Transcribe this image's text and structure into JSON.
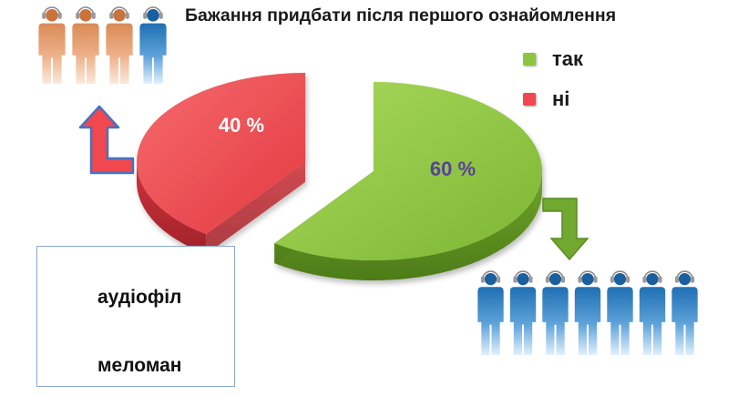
{
  "chart_data": {
    "type": "pie",
    "title": "Бажання придбати після першого ознайомлення",
    "categories": [
      "так",
      "ні"
    ],
    "values": [
      60,
      40
    ],
    "value_labels": [
      "60 %",
      "40 %"
    ],
    "legend_placement": "top-right"
  },
  "colors": {
    "yes": "#8cc63f",
    "no": "#f0484e",
    "audiophile": "#e8a57a",
    "music_lover": "#2f82c4",
    "arrow_no": "#4472c4",
    "arrow_yes": "#70a830"
  },
  "figures": {
    "top_row": [
      "audiophile",
      "audiophile",
      "audiophile",
      "music_lover"
    ],
    "bottom_row": [
      "music_lover",
      "music_lover",
      "music_lover",
      "music_lover",
      "music_lover",
      "music_lover",
      "music_lover"
    ]
  },
  "key": {
    "audiophile_label": "аудіофіл",
    "music_lover_label": "меломан"
  }
}
